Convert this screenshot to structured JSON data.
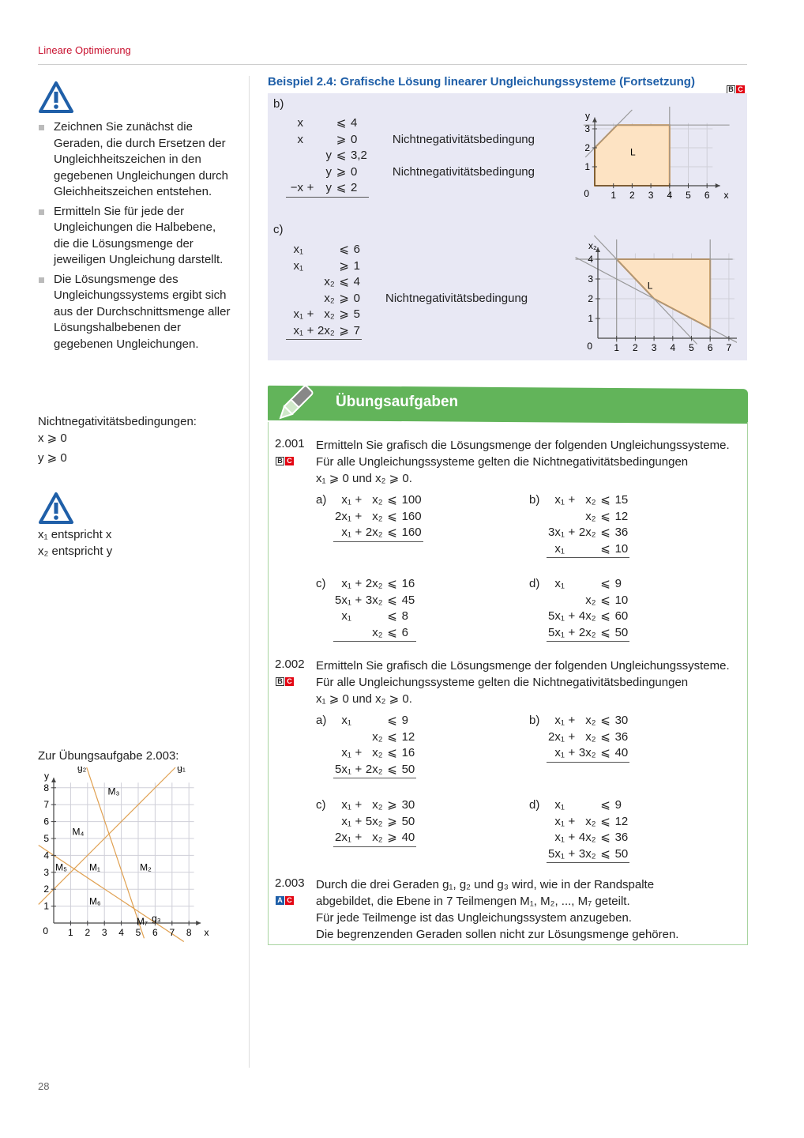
{
  "header": {
    "chapter": "Lineare Optimierung",
    "page_number": "28"
  },
  "colors": {
    "accent_red": "#c8102e",
    "example_blue": "#1f5fa8",
    "exercise_green": "#62b45a",
    "region_fill": "#fde3c3",
    "region_stroke": "#e08a1e"
  },
  "sidebar": {
    "icon": "warning-triangle-icon",
    "bullets": [
      "Zeichnen Sie zunächst die Geraden, die durch Ersetzen der Ungleichheitszeichen in den gegebenen Ungleichungen durch Gleichheitszeichen entstehen.",
      "Ermitteln Sie für jede der Ungleichungen die Halbebene, die die Lösungsmenge der jeweiligen Ungleichung darstellt.",
      "Die Lösungsmenge des Ungleichungssystems ergibt sich aus der Durchschnittsmenge aller Lösungshalbebenen der gegebenen Ungleichungen."
    ],
    "nn_title": "Nichtnegativitätsbedingungen:",
    "nn_lines": [
      "x ⩾ 0",
      "y ⩾ 0"
    ],
    "map_lines": [
      "x₁ entspricht x",
      "x₂ entspricht y"
    ],
    "graph_title": "Zur Übungsaufgabe 2.003:",
    "graph": {
      "x_label": "x",
      "y_label": "y",
      "x_ticks": [
        1,
        2,
        3,
        4,
        5,
        6,
        7,
        8
      ],
      "y_ticks": [
        1,
        2,
        3,
        4,
        5,
        6,
        7,
        8
      ],
      "lines": [
        {
          "name": "g₁",
          "eq": "y = x + 2"
        },
        {
          "name": "g₂",
          "eq": "y = −3x + 15"
        },
        {
          "name": "g₃",
          "eq": "y = −2/3 x + 4"
        }
      ],
      "regions": [
        "M₁",
        "M₂",
        "M₃",
        "M₄",
        "M₅",
        "M₆",
        "M₇"
      ]
    }
  },
  "example": {
    "title": "Beispiel 2.4: Grafische Lösung linearer Ungleichungssysteme (Fortsetzung)",
    "badges": [
      "B",
      "C"
    ],
    "b": {
      "label": "b)",
      "rows": [
        [
          "x",
          "",
          "",
          "⩽",
          "4",
          ""
        ],
        [
          "x",
          "",
          "",
          "⩾",
          "0",
          "Nichtnegativitätsbedingung"
        ],
        [
          "",
          "",
          "y",
          "⩽",
          "3,2",
          ""
        ],
        [
          "",
          "",
          "y",
          "⩾",
          "0",
          "Nichtnegativitätsbedingung"
        ],
        [
          "−x",
          "+",
          "y",
          "⩽",
          "2",
          ""
        ]
      ],
      "graph": {
        "x_label": "x",
        "y_label": "y",
        "x_ticks": [
          1,
          2,
          3,
          4,
          5,
          6
        ],
        "y_ticks": [
          1,
          2,
          3
        ],
        "region_label": "L",
        "region": [
          [
            0,
            0
          ],
          [
            4,
            0
          ],
          [
            4,
            3.2
          ],
          [
            1.2,
            3.2
          ],
          [
            0,
            2
          ]
        ]
      }
    },
    "c": {
      "label": "c)",
      "rows": [
        [
          "x₁",
          "",
          "",
          "⩽",
          "6",
          ""
        ],
        [
          "x₁",
          "",
          "",
          "⩾",
          "1",
          ""
        ],
        [
          "",
          "",
          "x₂",
          "⩽",
          "4",
          ""
        ],
        [
          "",
          "",
          "x₂",
          "⩾",
          "0",
          "Nichtnegativitätsbedingung"
        ],
        [
          "x₁",
          "+",
          "x₂",
          "⩾",
          "5",
          ""
        ],
        [
          "x₁",
          "+",
          "2x₂",
          "⩾",
          "7",
          ""
        ]
      ],
      "graph": {
        "x_label": "x₁",
        "y_label": "x₂",
        "x_ticks": [
          1,
          2,
          3,
          4,
          5,
          6,
          7
        ],
        "y_ticks": [
          1,
          2,
          3,
          4
        ],
        "region_label": "L",
        "region": [
          [
            1,
            4
          ],
          [
            6,
            4
          ],
          [
            6,
            0.5
          ],
          [
            3,
            2
          ]
        ]
      }
    }
  },
  "exercises": {
    "title": "Übungsaufgaben",
    "icon": "pencil-icon",
    "items": [
      {
        "number": "2.001",
        "badges": [
          "B",
          "C"
        ],
        "text": [
          "Ermitteln Sie grafisch die Lösungsmenge der folgenden Ungleichungssysteme.",
          "Für alle Ungleichungssysteme gelten die Nichtnegativitätsbedingungen",
          "x₁ ⩾ 0 und x₂ ⩾ 0."
        ],
        "systems": [
          {
            "label": "a)",
            "rows": [
              [
                "x₁",
                "+",
                "x₂",
                "⩽",
                "100"
              ],
              [
                "2x₁",
                "+",
                "x₂",
                "⩽",
                "160"
              ],
              [
                "x₁",
                "+",
                "2x₂",
                "⩽",
                "160"
              ]
            ]
          },
          {
            "label": "b)",
            "rows": [
              [
                "x₁",
                "+",
                "x₂",
                "⩽",
                "15"
              ],
              [
                "",
                "",
                "x₂",
                "⩽",
                "12"
              ],
              [
                "3x₁",
                "+",
                "2x₂",
                "⩽",
                "36"
              ],
              [
                "x₁",
                "",
                "",
                "⩽",
                "10"
              ]
            ]
          },
          {
            "label": "c)",
            "rows": [
              [
                "x₁",
                "+",
                "2x₂",
                "⩽",
                "16"
              ],
              [
                "5x₁",
                "+",
                "3x₂",
                "⩽",
                "45"
              ],
              [
                "x₁",
                "",
                "",
                "⩽",
                "8"
              ],
              [
                "",
                "",
                "x₂",
                "⩽",
                "6"
              ]
            ]
          },
          {
            "label": "d)",
            "rows": [
              [
                "x₁",
                "",
                "",
                "⩽",
                "9"
              ],
              [
                "",
                "",
                "x₂",
                "⩽",
                "10"
              ],
              [
                "5x₁",
                "+",
                "4x₂",
                "⩽",
                "60"
              ],
              [
                "5x₁",
                "+",
                "2x₂",
                "⩽",
                "50"
              ]
            ]
          }
        ]
      },
      {
        "number": "2.002",
        "badges": [
          "B",
          "C"
        ],
        "text": [
          "Ermitteln Sie grafisch die Lösungsmenge der folgenden Ungleichungssysteme.",
          "Für alle Ungleichungssysteme gelten die Nichtnegativitätsbedingungen",
          "x₁ ⩾ 0 und x₂ ⩾ 0."
        ],
        "systems": [
          {
            "label": "a)",
            "rows": [
              [
                "x₁",
                "",
                "",
                "⩽",
                "9"
              ],
              [
                "",
                "",
                "x₂",
                "⩽",
                "12"
              ],
              [
                "x₁",
                "+",
                "x₂",
                "⩽",
                "16"
              ],
              [
                "5x₁",
                "+",
                "2x₂",
                "⩽",
                "50"
              ]
            ]
          },
          {
            "label": "b)",
            "rows": [
              [
                "x₁",
                "+",
                "x₂",
                "⩽",
                "30"
              ],
              [
                "2x₁",
                "+",
                "x₂",
                "⩽",
                "36"
              ],
              [
                "x₁",
                "+",
                "3x₂",
                "⩽",
                "40"
              ]
            ]
          },
          {
            "label": "c)",
            "rows": [
              [
                "x₁",
                "+",
                "x₂",
                "⩾",
                "30"
              ],
              [
                "x₁",
                "+",
                "5x₂",
                "⩾",
                "50"
              ],
              [
                "2x₁",
                "+",
                "x₂",
                "⩾",
                "40"
              ]
            ]
          },
          {
            "label": "d)",
            "rows": [
              [
                "x₁",
                "",
                "",
                "⩽",
                "9"
              ],
              [
                "x₁",
                "+",
                "x₂",
                "⩽",
                "12"
              ],
              [
                "x₁",
                "+",
                "4x₂",
                "⩽",
                "36"
              ],
              [
                "5x₁",
                "+",
                "3x₂",
                "⩽",
                "50"
              ]
            ]
          }
        ]
      },
      {
        "number": "2.003",
        "badges": [
          "A",
          "C"
        ],
        "text": [
          "Durch die drei Geraden g₁, g₂ und g₃ wird, wie in der Randspalte",
          "abgebildet, die Ebene in 7 Teilmengen M₁, M₂, ..., M₇ geteilt.",
          "Für jede Teilmenge ist das Ungleichungssystem anzugeben.",
          "Die begrenzenden Geraden sollen nicht zur Lösungsmenge gehören."
        ]
      }
    ]
  }
}
